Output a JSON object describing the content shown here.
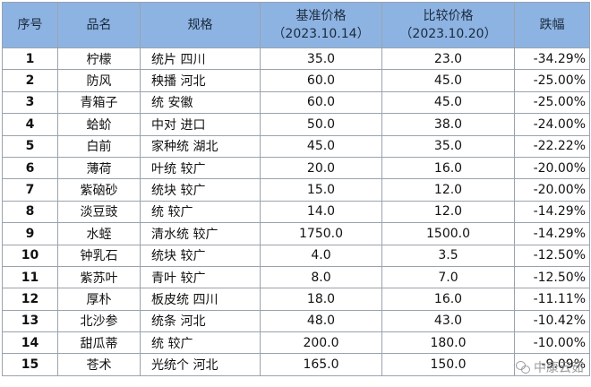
{
  "table": {
    "headers": {
      "index": "序号",
      "name": "品名",
      "spec": "规格",
      "base_price": "基准价格",
      "base_date": "（2023.10.14）",
      "compare_price": "比较价格",
      "compare_date": "（2023.10.20）",
      "change": "跌幅"
    },
    "rows": [
      {
        "index": "1",
        "name": "柠檬",
        "spec": "统片 四川",
        "base": "35.0",
        "compare": "23.0",
        "change": "-34.29%"
      },
      {
        "index": "2",
        "name": "防风",
        "spec": "秧播 河北",
        "base": "60.0",
        "compare": "45.0",
        "change": "-25.00%"
      },
      {
        "index": "3",
        "name": "青箱子",
        "spec": "统 安徽",
        "base": "60.0",
        "compare": "45.0",
        "change": "-25.00%"
      },
      {
        "index": "4",
        "name": "蛤蚧",
        "spec": "中对 进口",
        "base": "50.0",
        "compare": "38.0",
        "change": "-24.00%"
      },
      {
        "index": "5",
        "name": "白前",
        "spec": "家种统 湖北",
        "base": "45.0",
        "compare": "35.0",
        "change": "-22.22%"
      },
      {
        "index": "6",
        "name": "薄荷",
        "spec": "叶统 较广",
        "base": "20.0",
        "compare": "16.0",
        "change": "-20.00%"
      },
      {
        "index": "7",
        "name": "紫硇砂",
        "spec": "统块 较广",
        "base": "15.0",
        "compare": "12.0",
        "change": "-20.00%"
      },
      {
        "index": "8",
        "name": "淡豆豉",
        "spec": "统 较广",
        "base": "14.0",
        "compare": "12.0",
        "change": "-14.29%"
      },
      {
        "index": "9",
        "name": "水蛭",
        "spec": "清水统 较广",
        "base": "1750.0",
        "compare": "1500.0",
        "change": "-14.29%"
      },
      {
        "index": "10",
        "name": "钟乳石",
        "spec": "统块 较广",
        "base": "4.0",
        "compare": "3.5",
        "change": "-12.50%"
      },
      {
        "index": "11",
        "name": "紫苏叶",
        "spec": "青叶 较广",
        "base": "8.0",
        "compare": "7.0",
        "change": "-12.50%"
      },
      {
        "index": "12",
        "name": "厚朴",
        "spec": "板皮统 四川",
        "base": "18.0",
        "compare": "16.0",
        "change": "-11.11%"
      },
      {
        "index": "13",
        "name": "北沙参",
        "spec": "统条 河北",
        "base": "48.0",
        "compare": "43.0",
        "change": "-10.42%"
      },
      {
        "index": "14",
        "name": "甜瓜蒂",
        "spec": "统 较广",
        "base": "200.0",
        "compare": "180.0",
        "change": "-10.00%"
      },
      {
        "index": "15",
        "name": "苍术",
        "spec": "光统个 河北",
        "base": "165.0",
        "compare": "150.0",
        "change": "-9.09%"
      }
    ]
  },
  "watermark": {
    "text": "中康云茹",
    "icon": "wechat-icon"
  },
  "colors": {
    "header_bg": "#8db3e2",
    "change_text": "#1f8a2e",
    "border": "#9aa3ad"
  }
}
